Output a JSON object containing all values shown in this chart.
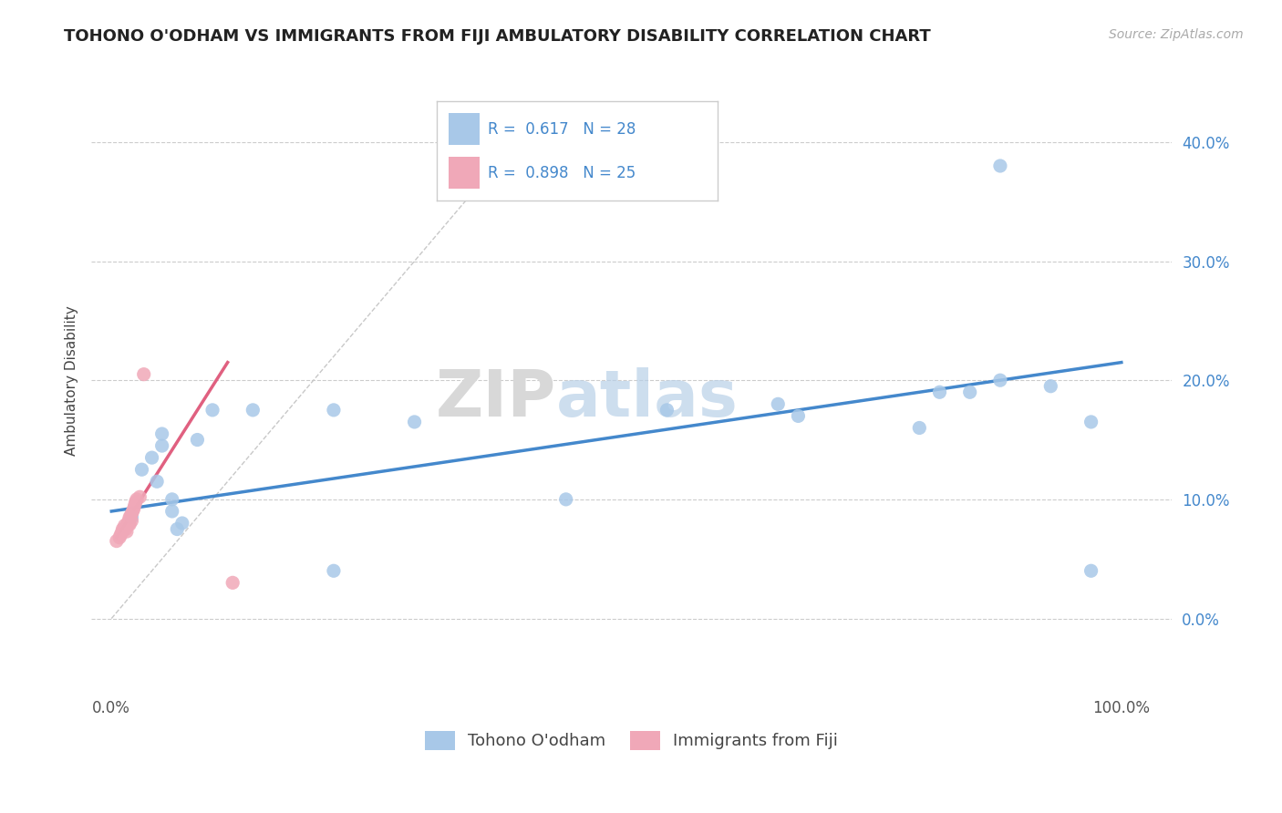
{
  "title": "TOHONO O'ODHAM VS IMMIGRANTS FROM FIJI AMBULATORY DISABILITY CORRELATION CHART",
  "source": "Source: ZipAtlas.com",
  "ylabel": "Ambulatory Disability",
  "xlim": [
    -0.02,
    1.05
  ],
  "ylim": [
    -0.06,
    0.46
  ],
  "yticks": [
    0.0,
    0.1,
    0.2,
    0.3,
    0.4
  ],
  "ytick_labels": [
    "0.0%",
    "10.0%",
    "20.0%",
    "30.0%",
    "40.0%"
  ],
  "xticks": [
    0.0,
    0.25,
    0.5,
    0.75,
    1.0
  ],
  "xtick_labels": [
    "0.0%",
    "",
    "",
    "",
    "100.0%"
  ],
  "blue_color": "#a8c8e8",
  "pink_color": "#f0a8b8",
  "line_blue": "#4488cc",
  "line_pink": "#e06080",
  "diag_color": "#c8c8c8",
  "watermark_zip": "ZIP",
  "watermark_atlas": "atlas",
  "blue_scatter_x": [
    0.02,
    0.03,
    0.04,
    0.045,
    0.05,
    0.05,
    0.06,
    0.06,
    0.065,
    0.07,
    0.085,
    0.1,
    0.14,
    0.22,
    0.22,
    0.3,
    0.45,
    0.55,
    0.66,
    0.68,
    0.8,
    0.82,
    0.85,
    0.88,
    0.88,
    0.93,
    0.97,
    0.97
  ],
  "blue_scatter_y": [
    0.085,
    0.125,
    0.135,
    0.115,
    0.145,
    0.155,
    0.09,
    0.1,
    0.075,
    0.08,
    0.15,
    0.175,
    0.175,
    0.175,
    0.04,
    0.165,
    0.1,
    0.175,
    0.18,
    0.17,
    0.16,
    0.19,
    0.19,
    0.38,
    0.2,
    0.195,
    0.165,
    0.04
  ],
  "pink_scatter_x": [
    0.005,
    0.008,
    0.009,
    0.01,
    0.011,
    0.012,
    0.013,
    0.014,
    0.015,
    0.016,
    0.017,
    0.017,
    0.018,
    0.018,
    0.019,
    0.02,
    0.02,
    0.021,
    0.022,
    0.023,
    0.024,
    0.025,
    0.028,
    0.032,
    0.12
  ],
  "pink_scatter_y": [
    0.065,
    0.068,
    0.07,
    0.072,
    0.075,
    0.075,
    0.078,
    0.075,
    0.073,
    0.08,
    0.082,
    0.079,
    0.085,
    0.079,
    0.086,
    0.088,
    0.082,
    0.09,
    0.092,
    0.095,
    0.098,
    0.1,
    0.102,
    0.205,
    0.03
  ],
  "blue_line_x": [
    0.0,
    1.0
  ],
  "blue_line_y": [
    0.09,
    0.215
  ],
  "pink_line_x": [
    0.005,
    0.115
  ],
  "pink_line_y": [
    0.068,
    0.215
  ],
  "diag_line_x": [
    0.0,
    0.42
  ],
  "diag_line_y": [
    0.0,
    0.42
  ],
  "background_color": "#ffffff",
  "grid_color": "#cccccc",
  "tick_color": "#4488cc",
  "legend_blue_text": "R =  0.617   N = 28",
  "legend_pink_text": "R =  0.898   N = 25",
  "legend_label1": "Tohono O'odham",
  "legend_label2": "Immigrants from Fiji"
}
